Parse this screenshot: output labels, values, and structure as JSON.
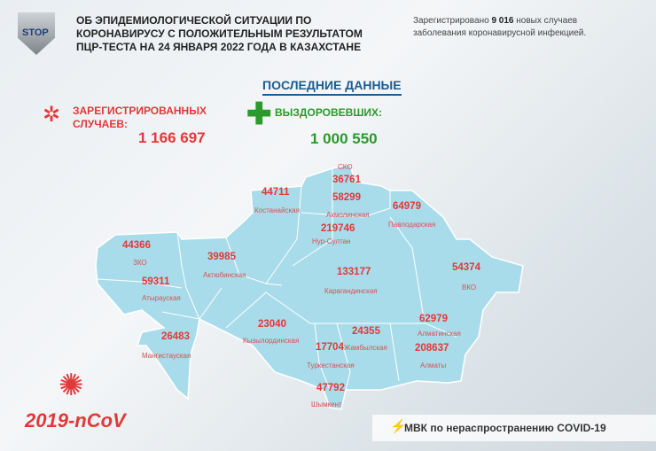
{
  "header": {
    "logo_text": "STOP",
    "title_lines": [
      "ОБ ЭПИДЕМИОЛОГИЧЕСКОЙ СИТУАЦИИ ПО",
      "КОРОНАВИРУСУ С ПОЛОЖИТЕЛЬНЫМ РЕЗУЛЬТАТОМ",
      "ПЦР-ТЕСТА НА 24 ЯНВАРЯ 2022 ГОДА В КАЗАХСТАНЕ"
    ],
    "note_prefix": "Зарегистрировано",
    "note_count": "9 016",
    "note_suffix": "новых случаев",
    "note_line2": "заболевания коронавирусной инфекцией."
  },
  "latest": {
    "heading": "ПОСЛЕДНИЕ ДАННЫЕ",
    "registered_label_1": "ЗАРЕГИСТРИРОВАННЫХ",
    "registered_label_2": "СЛУЧАЕВ:",
    "registered_value": "1 166 697",
    "recovered_label": "ВЫЗДОРОВЕВШИХ:",
    "recovered_value": "1 000 550"
  },
  "regions": [
    {
      "name": "СКО",
      "value": "36761"
    },
    {
      "name": "Костанайская",
      "value": "44711"
    },
    {
      "name": "Акмолинская",
      "value": "58299"
    },
    {
      "name": "Павлодарская",
      "value": "64979"
    },
    {
      "name": "Нур-Султан",
      "value": "219746"
    },
    {
      "name": "ЗКО",
      "value": "44366"
    },
    {
      "name": "Актюбинская",
      "value": "39985"
    },
    {
      "name": "Атырауская",
      "value": "59311"
    },
    {
      "name": "Карагандинская",
      "value": "133177"
    },
    {
      "name": "ВКО",
      "value": "54374"
    },
    {
      "name": "Мангистауская",
      "value": "26483"
    },
    {
      "name": "Кызылординская",
      "value": "23040"
    },
    {
      "name": "Жамбылская",
      "value": "24355"
    },
    {
      "name": "Алматинская",
      "value": "62979"
    },
    {
      "name": "Туркестанская",
      "value": "17704"
    },
    {
      "name": "Алматы",
      "value": "208637"
    },
    {
      "name": "Шымкент",
      "value": "47792"
    }
  ],
  "footer": {
    "ncov": "2019-nCoV",
    "mvk": "МВК по нераспространению COVID-19"
  },
  "colors": {
    "accent_red": "#e23838",
    "accent_green": "#2a9a2a",
    "map_fill": "#a9dceb",
    "heading_blue": "#1a5d92"
  }
}
